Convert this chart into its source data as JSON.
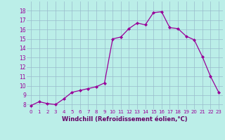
{
  "x": [
    0,
    1,
    2,
    3,
    4,
    5,
    6,
    7,
    8,
    9,
    10,
    11,
    12,
    13,
    14,
    15,
    16,
    17,
    18,
    19,
    20,
    21,
    22,
    23
  ],
  "y": [
    7.9,
    8.3,
    8.1,
    8.0,
    8.6,
    9.3,
    9.5,
    9.7,
    9.9,
    10.3,
    15.0,
    15.2,
    16.1,
    16.7,
    16.5,
    17.8,
    17.9,
    16.2,
    16.1,
    15.3,
    14.9,
    13.1,
    11.0,
    9.3
  ],
  "xlabel": "Windchill (Refroidissement éolien,°C)",
  "ylim": [
    7.5,
    19.0
  ],
  "xlim": [
    -0.5,
    23.5
  ],
  "yticks": [
    8,
    9,
    10,
    11,
    12,
    13,
    14,
    15,
    16,
    17,
    18
  ],
  "xtick_labels": [
    "0",
    "1",
    "2",
    "3",
    "4",
    "5",
    "6",
    "7",
    "8",
    "9",
    "10",
    "11",
    "12",
    "13",
    "14",
    "15",
    "16",
    "17",
    "18",
    "19",
    "20",
    "21",
    "22",
    "23"
  ],
  "line_color": "#990099",
  "marker_color": "#990099",
  "bg_color": "#bbeee8",
  "grid_color": "#99bbcc",
  "xlabel_color": "#660066"
}
